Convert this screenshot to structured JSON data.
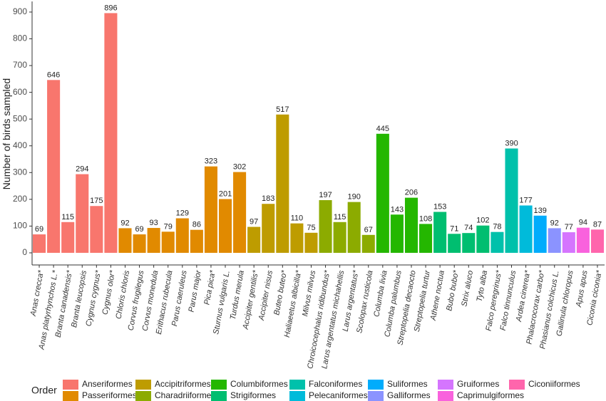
{
  "chart_data": {
    "type": "bar",
    "y_label": "Number of birds sampled",
    "categories": [
      "Anas crecca*",
      "Anas platyrhynchos L.*",
      "Branta canadensis*",
      "Branta leucopsis",
      "Cygnus cygnus*",
      "Cygnus olor*",
      "Chloris chloris",
      "Corvus frugilegus",
      "Corvus monedula",
      "Erithacus rubecula",
      "Parus caeruleus",
      "Parus major",
      "Pica pica*",
      "Sturnus vulgaris L.",
      "Turdus merula",
      "Accipiter gentilis*",
      "Accipiter nisus",
      "Buteo buteo*",
      "Haliaeetus albicilla*",
      "Milvus milvus",
      "Chroicocephalus ridibundus*",
      "Larus argentatus michahellis",
      "Larus argentatus*",
      "Scolopax rusticola",
      "Columba livia",
      "Columba palumbus",
      "Streptopelia decaocto",
      "Streptopelia turtur",
      "Athene noctua",
      "Bubo bubo*",
      "Strix aluco",
      "Tyto alba",
      "Falco peregrinus*",
      "Falco tinnunculus",
      "Ardea cinerea*",
      "Phalacrocorax carbo*",
      "Phasianus colchicus L.",
      "Gallinula chloropus",
      "Apus apus",
      "Ciconia ciconia*"
    ],
    "values": [
      69,
      646,
      115,
      294,
      175,
      896,
      92,
      69,
      93,
      79,
      129,
      86,
      323,
      201,
      302,
      97,
      183,
      517,
      110,
      75,
      197,
      115,
      190,
      67,
      445,
      143,
      206,
      108,
      153,
      71,
      74,
      102,
      78,
      390,
      177,
      139,
      92,
      77,
      94,
      87
    ],
    "groups": [
      "Anseriformes",
      "Anseriformes",
      "Anseriformes",
      "Anseriformes",
      "Anseriformes",
      "Anseriformes",
      "Passeriformes",
      "Passeriformes",
      "Passeriformes",
      "Passeriformes",
      "Passeriformes",
      "Passeriformes",
      "Passeriformes",
      "Passeriformes",
      "Passeriformes",
      "Accipitriformes",
      "Accipitriformes",
      "Accipitriformes",
      "Accipitriformes",
      "Accipitriformes",
      "Charadriiformes",
      "Charadriiformes",
      "Charadriiformes",
      "Charadriiformes",
      "Columbiformes",
      "Columbiformes",
      "Columbiformes",
      "Columbiformes",
      "Strigiformes",
      "Strigiformes",
      "Strigiformes",
      "Strigiformes",
      "Falconiformes",
      "Falconiformes",
      "Pelecaniformes",
      "Suliformes",
      "Galliformes",
      "Gruiformes",
      "Caprimulgiformes",
      "Ciconiiformes"
    ],
    "legend": {
      "title": "Order",
      "items": [
        {
          "name": "Anseriformes",
          "color": "#F8766D"
        },
        {
          "name": "Passeriformes",
          "color": "#E18A00"
        },
        {
          "name": "Accipitriformes",
          "color": "#BE9C00"
        },
        {
          "name": "Charadriiformes",
          "color": "#8CAB00"
        },
        {
          "name": "Columbiformes",
          "color": "#24B700"
        },
        {
          "name": "Strigiformes",
          "color": "#00BE70"
        },
        {
          "name": "Falconiformes",
          "color": "#00C1AB"
        },
        {
          "name": "Pelecaniformes",
          "color": "#00BBDA"
        },
        {
          "name": "Suliformes",
          "color": "#00ACFC"
        },
        {
          "name": "Galliformes",
          "color": "#8B93FF"
        },
        {
          "name": "Gruiformes",
          "color": "#D575FE"
        },
        {
          "name": "Caprimulgiformes",
          "color": "#F962DD"
        },
        {
          "name": "Ciconiiformes",
          "color": "#FF65AC"
        }
      ]
    },
    "ylim": [
      -44.8,
      940.8
    ],
    "yticks": [
      0,
      100,
      200,
      300,
      400,
      500,
      600,
      700,
      800,
      900
    ]
  }
}
